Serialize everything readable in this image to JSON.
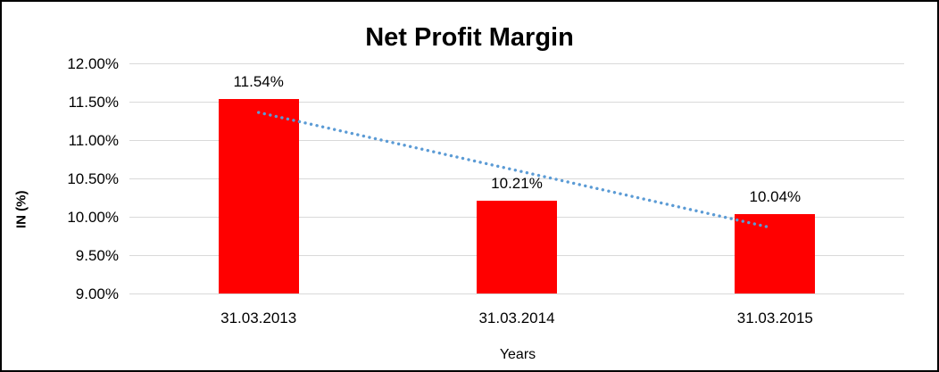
{
  "chart_data": {
    "type": "bar",
    "title": "Net Profit Margin",
    "xlabel": "Years",
    "ylabel": "IN (%)",
    "categories": [
      "31.03.2013",
      "31.03.2014",
      "31.03.2015"
    ],
    "series": [
      {
        "name": "Net Profit Margin",
        "values": [
          11.54,
          10.21,
          10.04
        ],
        "value_labels": [
          "11.54%",
          "10.21%",
          "10.04%"
        ],
        "color": "#ff0000"
      }
    ],
    "ylim": [
      9.0,
      12.0
    ],
    "yticks": [
      {
        "value": 12.0,
        "label": "12.00%"
      },
      {
        "value": 11.5,
        "label": "11.50%"
      },
      {
        "value": 11.0,
        "label": "11.00%"
      },
      {
        "value": 10.5,
        "label": "10.50%"
      },
      {
        "value": 10.0,
        "label": "10.00%"
      },
      {
        "value": 9.5,
        "label": "9.50%"
      },
      {
        "value": 9.0,
        "label": "9.00%"
      }
    ],
    "grid": "horizontal-on",
    "legend": "none",
    "trendline": {
      "type": "linear",
      "style": "dotted",
      "color": "#5b9bd5",
      "start_category_index": 0,
      "start_value": 11.36,
      "end_category_index": 2,
      "end_value": 9.86
    },
    "colors": {
      "bar": "#ff0000",
      "trendline": "#5b9bd5",
      "gridline": "#d9d9d9",
      "text": "#000000",
      "frame_border": "#000000",
      "background": "#ffffff"
    }
  }
}
